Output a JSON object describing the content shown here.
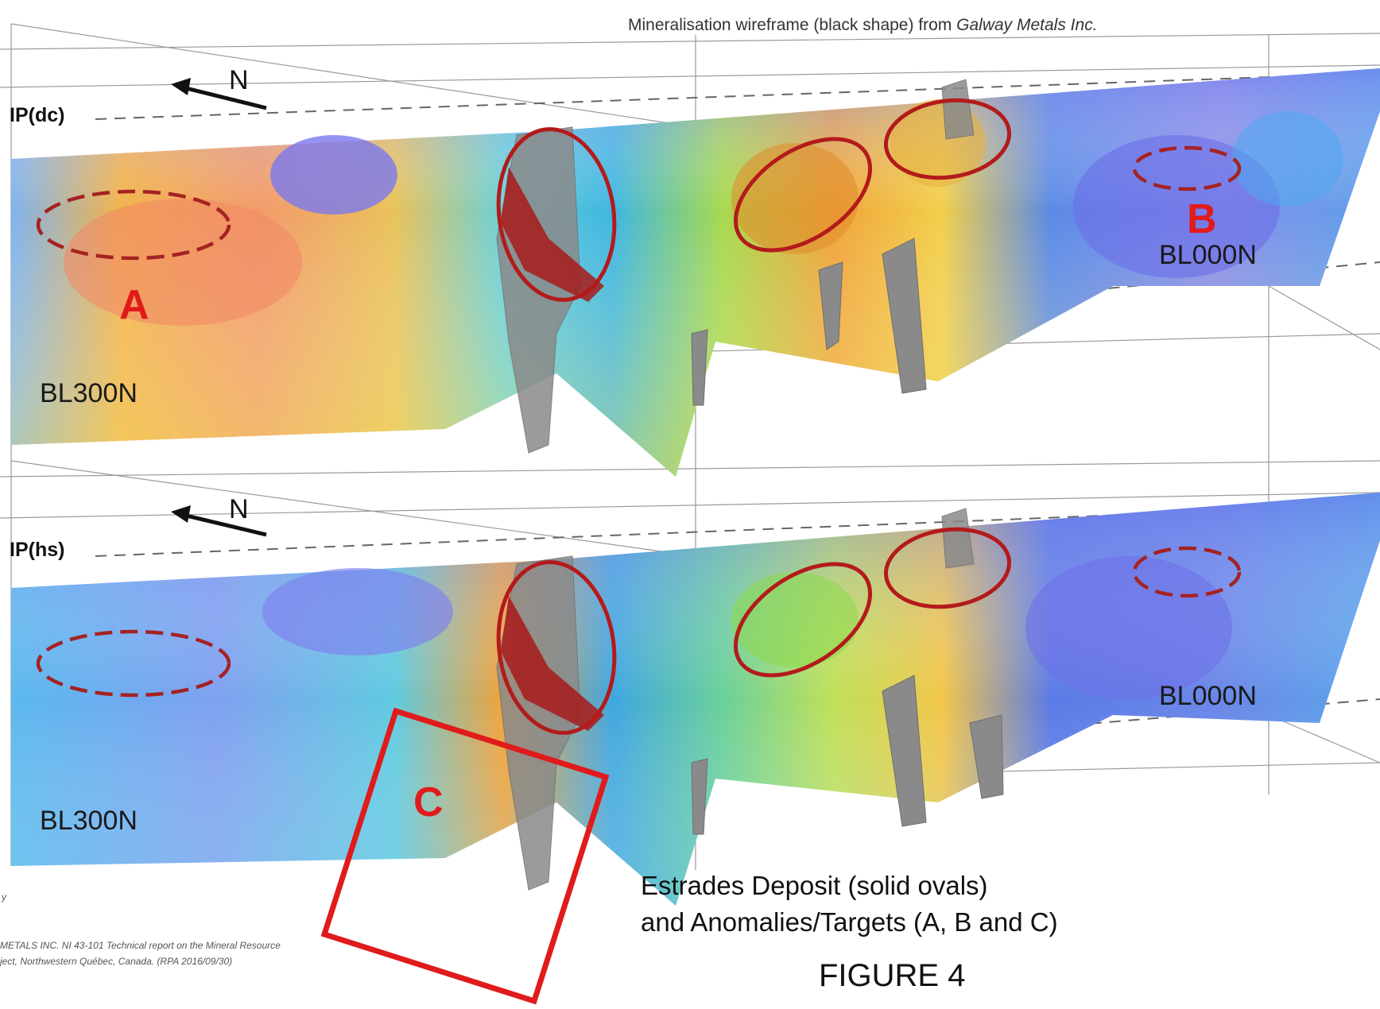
{
  "top_caption": {
    "prefix": "Mineralisation wireframe (black shape) from ",
    "company": "Galway Metals Inc."
  },
  "panels": [
    {
      "label": "IP(dc)",
      "north": "N",
      "left_line": "BL300N",
      "right_line": "BL000N"
    },
    {
      "label": "IP(hs)",
      "north": "N",
      "left_line": "BL300N",
      "right_line": "BL000N"
    }
  ],
  "targets": {
    "a": "A",
    "b": "B",
    "c": "C"
  },
  "legend": {
    "line1": "Estrades Deposit (solid ovals)",
    "line2": "and Anomalies/Targets (A, B and C)"
  },
  "figure_label": "FIGURE 4",
  "reference": {
    "fragment_y": "y",
    "line1": "METALS INC. NI 43-101 Technical report on the Mineral Resource",
    "line2": "ject, Northwestern Québec, Canada. (RPA 2016/09/30)"
  },
  "colors": {
    "target_red": "#e01b1b",
    "deposit_oval": "#b31b1b",
    "anomaly_dash": "#a52222",
    "wireframe": "#8a8a8a",
    "ip_low": "#5a6ee0",
    "ip_high": "#e8644a"
  }
}
